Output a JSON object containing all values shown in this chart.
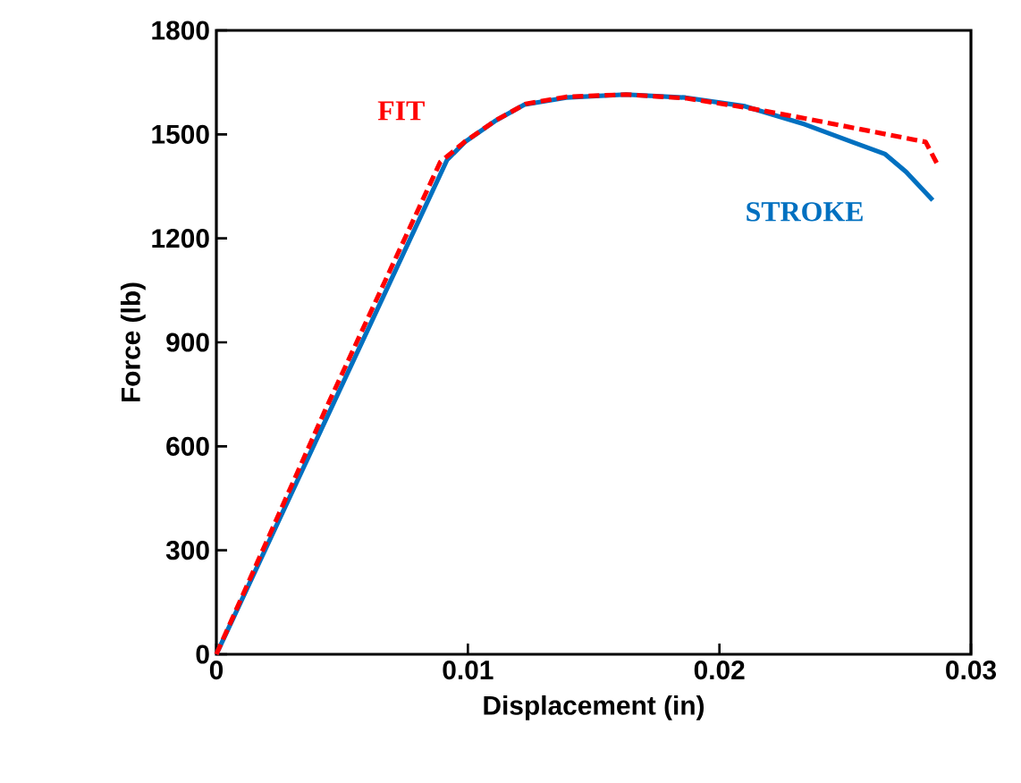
{
  "chart_data": {
    "type": "line",
    "xlabel": "Displacement (in)",
    "ylabel": "Force (lb)",
    "xlim": [
      0,
      0.03
    ],
    "xticks": [
      0,
      0.01,
      0.02,
      0.03
    ],
    "ylim": [
      0,
      1800
    ],
    "yticks": [
      0,
      300,
      600,
      900,
      1200,
      1500,
      1800
    ],
    "grid": false,
    "legend": false,
    "marker": "none",
    "series": [
      {
        "name": "STROKE",
        "color": "#0070c0",
        "line_style": "solid",
        "x": [
          0,
          0.00917,
          0.00988,
          0.01107,
          0.01225,
          0.01391,
          0.01628,
          0.01865,
          0.02102,
          0.02339,
          0.02528,
          0.02659,
          0.02742,
          0.02848
        ],
        "values": [
          0,
          1426,
          1478,
          1538,
          1586,
          1606,
          1615,
          1606,
          1581,
          1529,
          1478,
          1443,
          1392,
          1310
        ]
      },
      {
        "name": "FIT",
        "color": "#ff0000",
        "line_style": "dashed",
        "x": [
          0,
          0.0043,
          0.0089,
          0.0099,
          0.0111,
          0.0123,
          0.0139,
          0.0163,
          0.0187,
          0.021,
          0.0234,
          0.0258,
          0.0282,
          0.0287
        ],
        "values": [
          0,
          700,
          1420,
          1480,
          1540,
          1588,
          1608,
          1615,
          1604,
          1578,
          1546,
          1512,
          1478,
          1409
        ]
      }
    ]
  }
}
